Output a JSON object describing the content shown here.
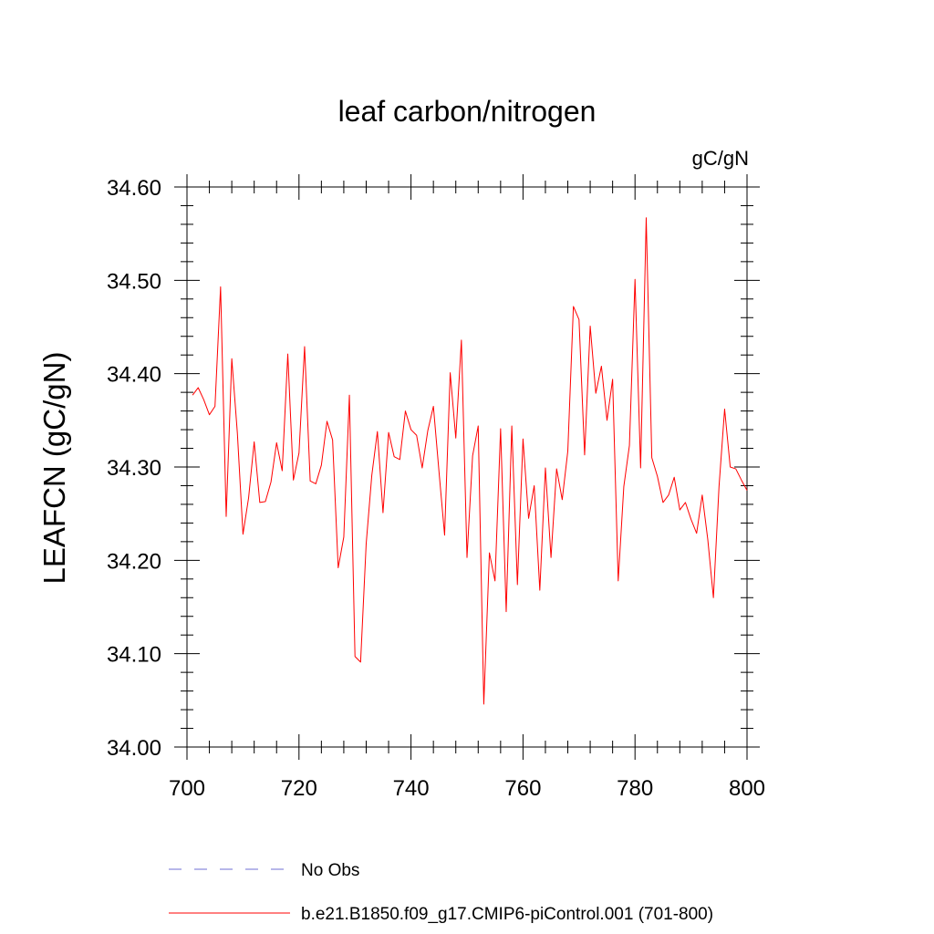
{
  "chart_data": {
    "type": "line",
    "title": "leaf carbon/nitrogen",
    "units_label": "gC/gN",
    "ylabel": "LEAFCN  (gC/gN)",
    "xlabel": "",
    "xlim": [
      700,
      800
    ],
    "ylim": [
      34.0,
      34.6
    ],
    "x_ticks": [
      "700",
      "720",
      "740",
      "760",
      "780",
      "800"
    ],
    "y_ticks": [
      "34.00",
      "34.10",
      "34.20",
      "34.30",
      "34.40",
      "34.50",
      "34.60"
    ],
    "x_tick_values": [
      700,
      720,
      740,
      760,
      780,
      800
    ],
    "y_tick_values": [
      34.0,
      34.1,
      34.2,
      34.3,
      34.4,
      34.5,
      34.6
    ],
    "series": [
      {
        "name": "b.e21.B1850.f09_g17.CMIP6-piControl.001 (701-800)",
        "color": "#ff0000",
        "style": "solid",
        "x_start": 701,
        "x_step": 1,
        "values": [
          34.377,
          34.385,
          34.372,
          34.356,
          34.365,
          34.493,
          34.247,
          34.416,
          34.336,
          34.228,
          34.267,
          34.327,
          34.262,
          34.263,
          34.284,
          34.326,
          34.296,
          34.421,
          34.286,
          34.315,
          34.429,
          34.285,
          34.282,
          34.302,
          34.349,
          34.329,
          34.192,
          34.225,
          34.377,
          34.097,
          34.091,
          34.218,
          34.291,
          34.338,
          34.251,
          34.337,
          34.311,
          34.308,
          34.36,
          34.34,
          34.334,
          34.299,
          34.339,
          34.365,
          34.295,
          34.227,
          34.401,
          34.331,
          34.436,
          34.203,
          34.312,
          34.344,
          34.046,
          34.208,
          34.178,
          34.341,
          34.145,
          34.344,
          34.174,
          34.33,
          34.245,
          34.28,
          34.168,
          34.299,
          34.203,
          34.298,
          34.265,
          34.317,
          34.472,
          34.458,
          34.313,
          34.451,
          34.379,
          34.408,
          34.35,
          34.394,
          34.178,
          34.279,
          34.323,
          34.501,
          34.299,
          34.567,
          34.31,
          34.29,
          34.262,
          34.27,
          34.289,
          34.254,
          34.262,
          34.244,
          34.229,
          34.27,
          34.222,
          34.16,
          34.279,
          34.362,
          34.3,
          34.298,
          34.286,
          34.275
        ]
      },
      {
        "name": "No Obs",
        "color": "#6f6fd6",
        "style": "dashed",
        "values": []
      }
    ],
    "legend_position": "bottom-left",
    "grid": false
  }
}
